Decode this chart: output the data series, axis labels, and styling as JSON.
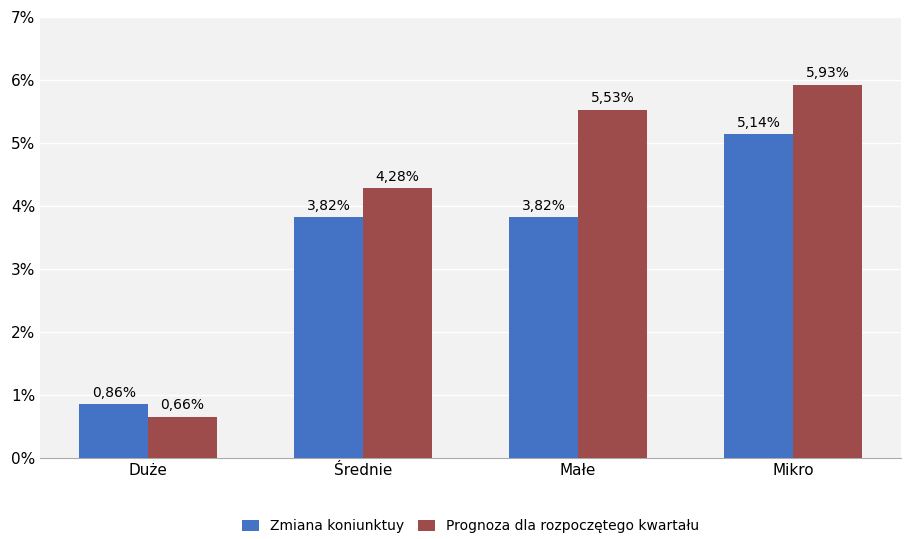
{
  "categories": [
    "Duże",
    "Średnie",
    "Małe",
    "Mikro"
  ],
  "series1_label": "Zmiana koniunktuy",
  "series2_label": "Prognoza dla rozpoczętego kwartału",
  "series1_values": [
    0.0086,
    0.0382,
    0.0382,
    0.0514
  ],
  "series2_values": [
    0.0066,
    0.0428,
    0.0553,
    0.0593
  ],
  "series1_labels": [
    "0,86%",
    "3,82%",
    "3,82%",
    "5,14%"
  ],
  "series2_labels": [
    "0,66%",
    "4,28%",
    "5,53%",
    "5,93%"
  ],
  "series1_color": "#4472C4",
  "series2_color": "#9E4B4B",
  "bar_width": 0.32,
  "ylim": [
    0,
    0.07
  ],
  "yticks": [
    0.0,
    0.01,
    0.02,
    0.03,
    0.04,
    0.05,
    0.06,
    0.07
  ],
  "ytick_labels": [
    "0%",
    "1%",
    "2%",
    "3%",
    "4%",
    "5%",
    "6%",
    "7%"
  ],
  "background_color": "#FFFFFF",
  "plot_bg_color": "#F2F2F2",
  "grid_color": "#FFFFFF",
  "legend_fontsize": 10,
  "tick_fontsize": 11,
  "label_fontsize": 10
}
